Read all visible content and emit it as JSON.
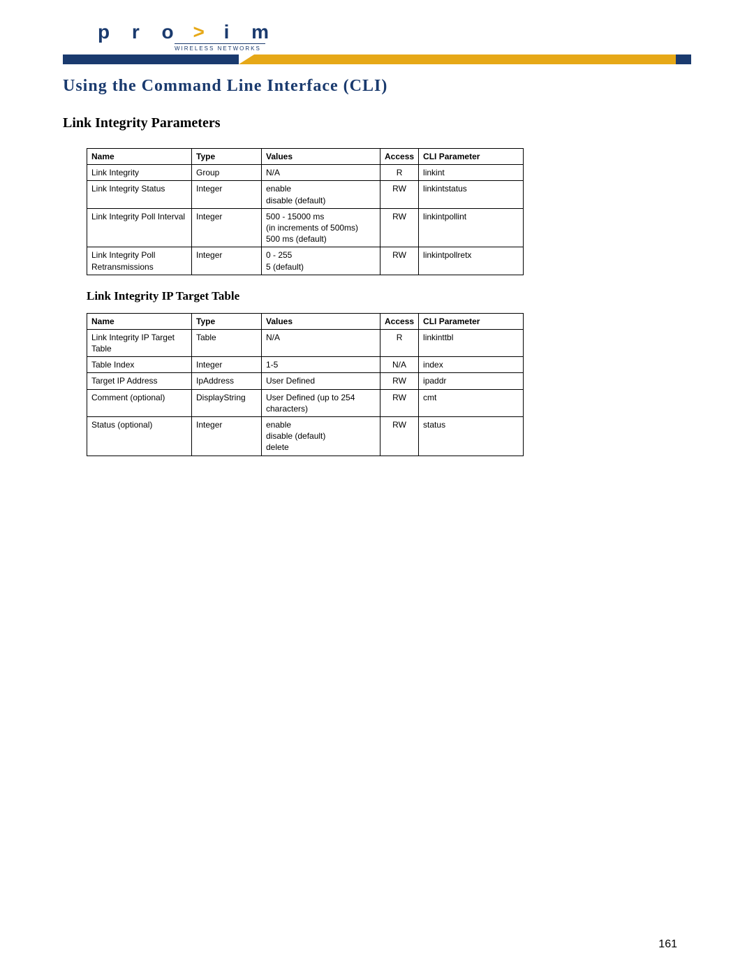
{
  "logo": {
    "brand": "proxim",
    "sub": "WIRELESS NETWORKS"
  },
  "header_colors": {
    "blue": "#1a3a6e",
    "orange": "#e6a817"
  },
  "page_title": "Using the Command Line Interface (CLI)",
  "section_heading": "Link Integrity Parameters",
  "sub_heading": "Link Integrity IP Target Table",
  "table1": {
    "columns": [
      "Name",
      "Type",
      "Values",
      "Access",
      "CLI Parameter"
    ],
    "rows": [
      [
        "Link Integrity",
        "Group",
        "N/A",
        "R",
        "linkint"
      ],
      [
        "Link Integrity Status",
        "Integer",
        "enable\ndisable (default)",
        "RW",
        "linkintstatus"
      ],
      [
        "Link Integrity Poll Interval",
        "Integer",
        "500 - 15000 ms\n(in increments of 500ms)\n500 ms (default)",
        "RW",
        "linkintpollint"
      ],
      [
        "Link Integrity Poll Retransmissions",
        "Integer",
        "0 - 255\n5 (default)",
        "RW",
        "linkintpollretx"
      ]
    ]
  },
  "table2": {
    "columns": [
      "Name",
      "Type",
      "Values",
      "Access",
      "CLI Parameter"
    ],
    "rows": [
      [
        "Link Integrity IP Target Table",
        "Table",
        "N/A",
        "R",
        "linkinttbl"
      ],
      [
        "Table Index",
        "Integer",
        "1-5",
        "N/A",
        "index"
      ],
      [
        "Target IP Address",
        "IpAddress",
        "User Defined",
        "RW",
        "ipaddr"
      ],
      [
        "Comment (optional)",
        "DisplayString",
        "User Defined (up to 254 characters)",
        "RW",
        "cmt"
      ],
      [
        "Status (optional)",
        "Integer",
        "enable\ndisable (default)\ndelete",
        "RW",
        "status"
      ]
    ]
  },
  "page_number": "161"
}
